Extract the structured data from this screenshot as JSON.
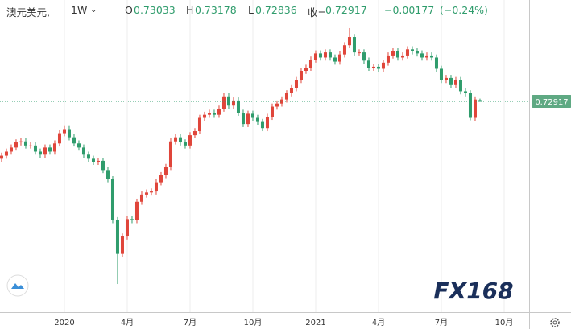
{
  "chart_data": {
    "type": "candlestick",
    "header": {
      "symbol": "澳元美元,",
      "interval": "1W",
      "open_label": "O",
      "high_label": "H",
      "low_label": "L",
      "close_label": "收=",
      "change": {
        "value": -0.00177,
        "label": "−0.00177"
      },
      "change_pct": {
        "value": -0.24,
        "label": "(−0.24%)"
      }
    },
    "logo": "FX168",
    "up_color": "#e0453a",
    "down_color": "#2f9c6c",
    "open": [
      0.673,
      0.676,
      0.68,
      0.684,
      0.689,
      0.69,
      0.686,
      0.686,
      0.68,
      0.677,
      0.684,
      0.68,
      0.688,
      0.698,
      0.702,
      0.694,
      0.688,
      0.684,
      0.677,
      0.673,
      0.67,
      0.671,
      0.662,
      0.653,
      0.613,
      0.58,
      0.597,
      0.614,
      0.613,
      0.631,
      0.638,
      0.64,
      0.641,
      0.65,
      0.657,
      0.665,
      0.69,
      0.694,
      0.689,
      0.686,
      0.696,
      0.7,
      0.713,
      0.716,
      0.718,
      0.716,
      0.722,
      0.734,
      0.725,
      0.73,
      0.718,
      0.707,
      0.717,
      0.713,
      0.709,
      0.703,
      0.714,
      0.724,
      0.727,
      0.731,
      0.737,
      0.742,
      0.75,
      0.759,
      0.762,
      0.77,
      0.776,
      0.772,
      0.777,
      0.772,
      0.768,
      0.775,
      0.784,
      0.792,
      0.777,
      0.777,
      0.769,
      0.762,
      0.763,
      0.761,
      0.767,
      0.774,
      0.778,
      0.772,
      0.774,
      0.78,
      0.778,
      0.776,
      0.772,
      0.774,
      0.772,
      0.761,
      0.75,
      0.752,
      0.745,
      0.75,
      0.739,
      0.737,
      0.713,
      0.73033
    ],
    "high": [
      0.679,
      0.683,
      0.687,
      0.692,
      0.693,
      0.693,
      0.689,
      0.689,
      0.683,
      0.687,
      0.687,
      0.691,
      0.701,
      0.705,
      0.705,
      0.697,
      0.691,
      0.687,
      0.68,
      0.676,
      0.674,
      0.674,
      0.665,
      0.656,
      0.616,
      0.6,
      0.617,
      0.617,
      0.634,
      0.641,
      0.643,
      0.644,
      0.653,
      0.66,
      0.668,
      0.693,
      0.697,
      0.697,
      0.692,
      0.699,
      0.703,
      0.716,
      0.719,
      0.721,
      0.721,
      0.725,
      0.737,
      0.737,
      0.733,
      0.733,
      0.721,
      0.72,
      0.72,
      0.716,
      0.712,
      0.717,
      0.727,
      0.73,
      0.734,
      0.74,
      0.745,
      0.753,
      0.762,
      0.765,
      0.773,
      0.779,
      0.779,
      0.78,
      0.78,
      0.775,
      0.778,
      0.787,
      0.8007,
      0.795,
      0.78,
      0.78,
      0.772,
      0.766,
      0.766,
      0.77,
      0.777,
      0.781,
      0.781,
      0.777,
      0.783,
      0.783,
      0.781,
      0.779,
      0.777,
      0.777,
      0.775,
      0.764,
      0.755,
      0.755,
      0.753,
      0.753,
      0.742,
      0.74,
      0.734,
      0.73178
    ],
    "low": [
      0.67,
      0.673,
      0.677,
      0.681,
      0.686,
      0.683,
      0.683,
      0.677,
      0.674,
      0.674,
      0.677,
      0.677,
      0.685,
      0.695,
      0.691,
      0.685,
      0.681,
      0.674,
      0.67,
      0.667,
      0.667,
      0.659,
      0.65,
      0.61,
      0.5506,
      0.577,
      0.594,
      0.61,
      0.61,
      0.628,
      0.635,
      0.637,
      0.638,
      0.647,
      0.654,
      0.662,
      0.687,
      0.686,
      0.683,
      0.683,
      0.693,
      0.697,
      0.71,
      0.713,
      0.713,
      0.713,
      0.719,
      0.722,
      0.722,
      0.715,
      0.704,
      0.704,
      0.71,
      0.706,
      0.7,
      0.7,
      0.711,
      0.721,
      0.724,
      0.728,
      0.734,
      0.739,
      0.747,
      0.756,
      0.759,
      0.767,
      0.769,
      0.769,
      0.769,
      0.765,
      0.765,
      0.772,
      0.781,
      0.774,
      0.774,
      0.766,
      0.759,
      0.759,
      0.758,
      0.758,
      0.764,
      0.771,
      0.769,
      0.769,
      0.771,
      0.775,
      0.773,
      0.769,
      0.769,
      0.769,
      0.758,
      0.747,
      0.747,
      0.742,
      0.742,
      0.736,
      0.734,
      0.7106,
      0.71,
      0.72836
    ],
    "close": [
      0.676,
      0.68,
      0.684,
      0.689,
      0.69,
      0.686,
      0.686,
      0.68,
      0.677,
      0.684,
      0.68,
      0.688,
      0.698,
      0.702,
      0.694,
      0.688,
      0.684,
      0.677,
      0.673,
      0.67,
      0.671,
      0.662,
      0.653,
      0.613,
      0.58,
      0.597,
      0.614,
      0.613,
      0.631,
      0.638,
      0.64,
      0.641,
      0.65,
      0.657,
      0.665,
      0.69,
      0.694,
      0.689,
      0.686,
      0.696,
      0.7,
      0.713,
      0.716,
      0.718,
      0.716,
      0.722,
      0.734,
      0.725,
      0.73,
      0.718,
      0.707,
      0.717,
      0.713,
      0.709,
      0.703,
      0.714,
      0.724,
      0.727,
      0.731,
      0.737,
      0.742,
      0.75,
      0.759,
      0.762,
      0.77,
      0.776,
      0.772,
      0.777,
      0.772,
      0.768,
      0.775,
      0.784,
      0.792,
      0.777,
      0.777,
      0.769,
      0.762,
      0.763,
      0.761,
      0.767,
      0.774,
      0.778,
      0.772,
      0.774,
      0.78,
      0.778,
      0.776,
      0.772,
      0.774,
      0.772,
      0.761,
      0.75,
      0.752,
      0.745,
      0.75,
      0.739,
      0.737,
      0.713,
      0.73094,
      0.72917
    ],
    "xlim": [
      -0.33,
      109.17
    ],
    "xticks": [
      {
        "value": 13,
        "label": "2020"
      },
      {
        "value": 26,
        "label": "4月"
      },
      {
        "value": 39,
        "label": "7月"
      },
      {
        "value": 52,
        "label": "10月"
      },
      {
        "value": 65,
        "label": "2021"
      },
      {
        "value": 78,
        "label": "4月"
      },
      {
        "value": 91,
        "label": "7月"
      },
      {
        "value": 104,
        "label": "10月"
      }
    ],
    "ylim": [
      0.5231,
      0.8282
    ],
    "grid": true
  }
}
